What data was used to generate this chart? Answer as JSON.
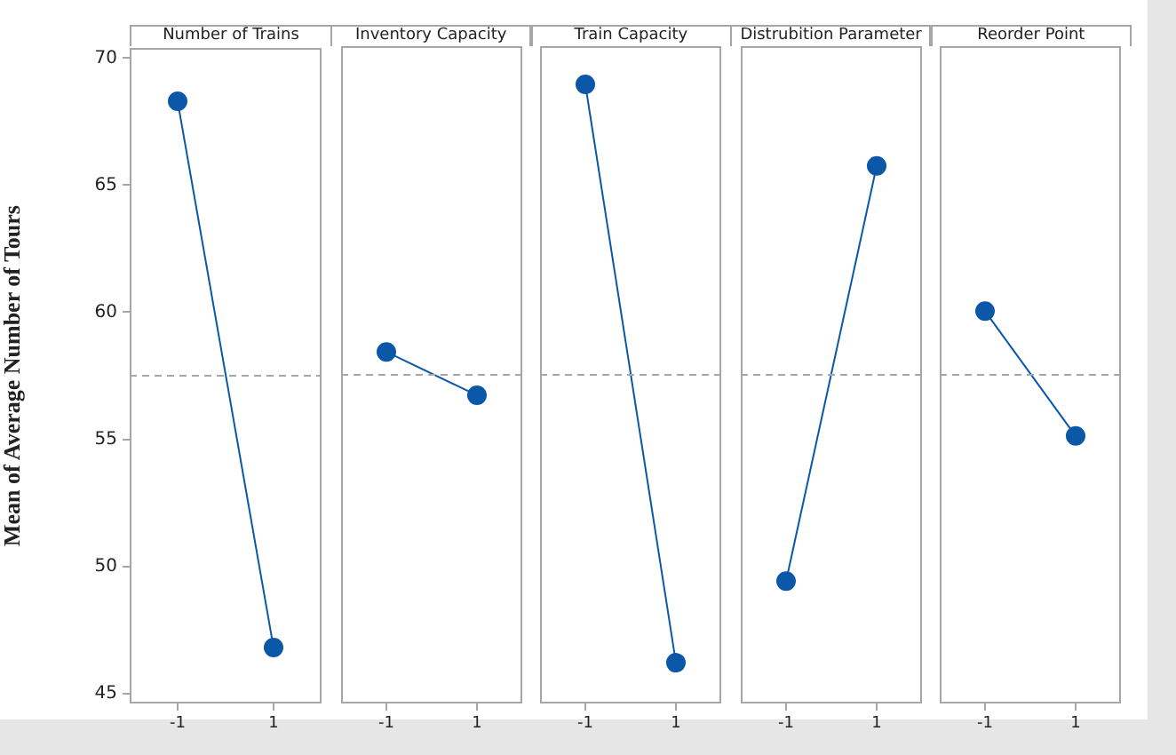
{
  "chart_data": [
    {
      "type": "line",
      "title": "Number of Trains",
      "ylabel": "Mean of Average Number of Tours",
      "categories": [
        "-1",
        "1"
      ],
      "values": [
        68.3,
        46.8
      ],
      "color": "#0b57a8",
      "marker": "circle",
      "ylim": [
        44.6,
        70.4
      ],
      "yticks": [
        45,
        50,
        55,
        60,
        65,
        70
      ],
      "ref_lines": [
        {
          "axis": "y",
          "value": 57.5,
          "color": "#a6a6a6",
          "line_style": "dashed"
        }
      ]
    },
    {
      "type": "line",
      "title": "Inventory Capacity",
      "categories": [
        "-1",
        "1"
      ],
      "values": [
        58.4,
        56.7
      ],
      "color": "#0b57a8",
      "marker": "circle",
      "ylim": [
        44.6,
        70.4
      ],
      "yticks": [
        45,
        50,
        55,
        60,
        65,
        70
      ],
      "tick_labels": "x",
      "ref_lines": [
        {
          "axis": "y",
          "value": 57.5,
          "color": "#a6a6a6",
          "line_style": "dashed"
        }
      ]
    },
    {
      "type": "line",
      "title": "Train Capacity",
      "categories": [
        "-1",
        "1"
      ],
      "values": [
        68.9,
        46.2
      ],
      "color": "#0b57a8",
      "marker": "circle",
      "ylim": [
        44.6,
        70.4
      ],
      "yticks": [
        45,
        50,
        55,
        60,
        65,
        70
      ],
      "tick_labels": "x",
      "ref_lines": [
        {
          "axis": "y",
          "value": 57.5,
          "color": "#a6a6a6",
          "line_style": "dashed"
        }
      ]
    },
    {
      "type": "line",
      "title": "Distrubition Parameter",
      "categories": [
        "-1",
        "1"
      ],
      "values": [
        49.4,
        65.7
      ],
      "color": "#0b57a8",
      "marker": "circle",
      "ylim": [
        44.6,
        70.4
      ],
      "yticks": [
        45,
        50,
        55,
        60,
        65,
        70
      ],
      "tick_labels": "x",
      "ref_lines": [
        {
          "axis": "y",
          "value": 57.5,
          "color": "#a6a6a6",
          "line_style": "dashed"
        }
      ]
    },
    {
      "type": "line",
      "title": "Reorder Point",
      "categories": [
        "-1",
        "1"
      ],
      "values": [
        60.0,
        55.1
      ],
      "color": "#0b57a8",
      "marker": "circle",
      "ylim": [
        44.6,
        70.4
      ],
      "yticks": [
        45,
        50,
        55,
        60,
        65,
        70
      ],
      "tick_labels": "x",
      "ref_lines": [
        {
          "axis": "y",
          "value": 57.5,
          "color": "#a6a6a6",
          "line_style": "dashed"
        }
      ]
    }
  ]
}
